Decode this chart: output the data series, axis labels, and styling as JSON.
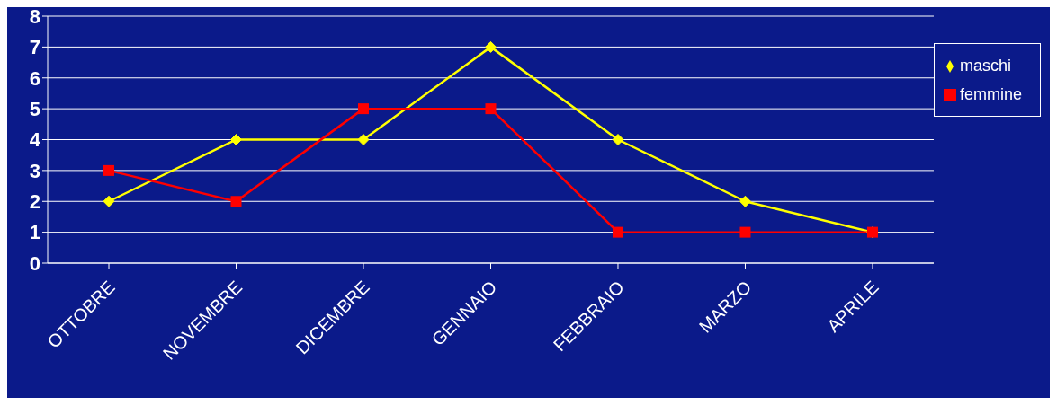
{
  "chart_data": {
    "type": "line",
    "categories": [
      "OTTOBRE",
      "NOVEMBRE",
      "DICEMBRE",
      "GENNAIO",
      "FEBBRAIO",
      "MARZO",
      "APRILE"
    ],
    "series": [
      {
        "name": "maschi",
        "color": "#ffff00",
        "marker": "diamond",
        "values": [
          2,
          4,
          4,
          7,
          4,
          2,
          1
        ]
      },
      {
        "name": "femmine",
        "color": "#ff0000",
        "marker": "square",
        "values": [
          3,
          2,
          5,
          5,
          1,
          1,
          1
        ]
      }
    ],
    "ylim": [
      0,
      8
    ],
    "yticks": [
      0,
      1,
      2,
      3,
      4,
      5,
      6,
      7,
      8
    ],
    "grid": "y",
    "legend": "right"
  }
}
